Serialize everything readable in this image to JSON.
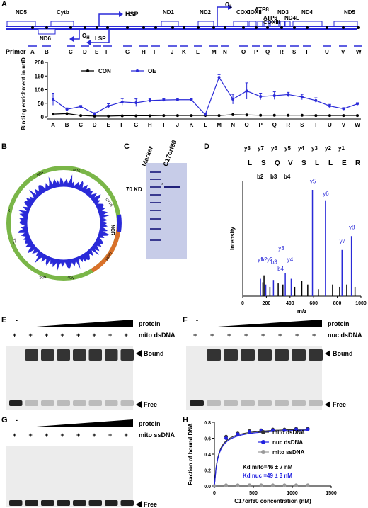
{
  "panels": {
    "a": "A",
    "b": "B",
    "c": "C",
    "d": "D",
    "e": "E",
    "f": "F",
    "g": "G",
    "h": "H"
  },
  "genome_map": {
    "genes_top": [
      "ND5",
      "Cytb",
      "ND1",
      "ND2",
      "COXI",
      "COXII",
      "ATP8",
      "ATP6",
      "COXIII",
      "ND3",
      "ND4L",
      "ND4",
      "ND5"
    ],
    "genes_bottom": [
      "ND6"
    ],
    "promoters": [
      "HSP",
      "LSP"
    ],
    "origins": [
      "OL",
      "OH"
    ],
    "primer_label": "Primer",
    "primers": [
      "A",
      "B",
      "C",
      "D",
      "E",
      "F",
      "G",
      "H",
      "I",
      "J",
      "K",
      "L",
      "M",
      "N",
      "O",
      "P",
      "Q",
      "R",
      "S",
      "T",
      "U",
      "V",
      "W"
    ]
  },
  "chart_data": [
    {
      "type": "line",
      "ylabel": "Binding enrichment in mtDNA",
      "ylim": [
        0,
        200
      ],
      "yticks": [
        0,
        50,
        100,
        150,
        200
      ],
      "categories": [
        "A",
        "B",
        "C",
        "D",
        "E",
        "F",
        "G",
        "H",
        "I",
        "J",
        "K",
        "L",
        "M",
        "N",
        "O",
        "P",
        "Q",
        "R",
        "S",
        "T",
        "U",
        "V",
        "W"
      ],
      "legend_position": "top",
      "series": [
        {
          "name": "CON",
          "color": "#000000",
          "values": [
            10,
            12,
            5,
            3,
            3,
            4,
            4,
            4,
            5,
            5,
            5,
            5,
            5,
            8,
            7,
            6,
            6,
            6,
            6,
            5,
            5,
            5,
            5
          ]
        },
        {
          "name": "OE",
          "color": "#2a2ad8",
          "values": [
            65,
            28,
            38,
            12,
            40,
            55,
            52,
            60,
            62,
            63,
            63,
            8,
            145,
            65,
            95,
            75,
            78,
            82,
            73,
            60,
            40,
            30,
            48
          ]
        }
      ],
      "errors": [
        22,
        5,
        4,
        3,
        8,
        12,
        14,
        6,
        4,
        5,
        4,
        4,
        10,
        18,
        30,
        12,
        14,
        8,
        10,
        10,
        6,
        4,
        4
      ]
    },
    {
      "type": "scatter",
      "xlabel": "C17orf80 concentration (nM)",
      "ylabel": "Fraction of bound DNA",
      "xlim": [
        0,
        1500
      ],
      "ylim": [
        0,
        0.8
      ],
      "xticks": [
        0,
        500,
        1000,
        1500
      ],
      "yticks": [
        0.0,
        0.2,
        0.4,
        0.6,
        0.8
      ],
      "legend_position": "right",
      "series": [
        {
          "name": "mito dsDNA",
          "color": "#333333",
          "x": [
            0,
            150,
            300,
            450,
            600,
            750,
            900,
            1050,
            1200
          ],
          "y": [
            0.0,
            0.62,
            0.66,
            0.69,
            0.7,
            0.71,
            0.71,
            0.72,
            0.72
          ]
        },
        {
          "name": "nuc dsDNA",
          "color": "#2020e0",
          "x": [
            0,
            150,
            300,
            450,
            600,
            750,
            900,
            1050,
            1200
          ],
          "y": [
            0.0,
            0.6,
            0.65,
            0.68,
            0.69,
            0.7,
            0.7,
            0.71,
            0.71
          ]
        },
        {
          "name": "mito ssDNA",
          "color": "#999999",
          "x": [
            0,
            150,
            300,
            450,
            600,
            750,
            900,
            1050,
            1200
          ],
          "y": [
            0.0,
            0.01,
            0.01,
            0.01,
            0.01,
            0.01,
            0.01,
            0.01,
            0.01
          ]
        }
      ],
      "annotations": [
        "Kd mito=46 ± 7 nM",
        "Kd nuc =49 ± 3 nM"
      ]
    }
  ],
  "circos": {
    "labels_outer": [
      "CYTB",
      "ND5",
      "E",
      "T P",
      "NCR",
      "F",
      "RNR1",
      "V",
      "ND4L",
      "ND3",
      "ND4",
      "COXIII",
      "ATP8ATP6",
      "COII",
      "K",
      "D",
      "S",
      "COI",
      "R",
      "A W C Y",
      "ND2",
      "M",
      "ND1",
      "I Q",
      "L1",
      "RNR2",
      "ND6",
      "S2",
      "H",
      "L2"
    ]
  },
  "gel_c": {
    "marker": "Marker",
    "protein": "C17orf80",
    "size": "70 KD"
  },
  "ms": {
    "peptide": [
      "L",
      "S",
      "Q",
      "V",
      "S",
      "L",
      "L",
      "E",
      "R"
    ],
    "y_ions": [
      "y8",
      "y7",
      "y6",
      "y5",
      "y4",
      "y3",
      "y2",
      "y1"
    ],
    "b_ions": [
      "b2",
      "b3",
      "b4"
    ],
    "ylabel": "Intensity",
    "xlabel": "m/z",
    "xticks": [
      "0",
      "200",
      "400",
      "600",
      "800",
      "1000"
    ],
    "peak_labels": [
      "y1",
      "b2",
      "y2",
      "b3",
      "y3",
      "b4",
      "y4",
      "y5",
      "y6",
      "y7",
      "y8"
    ]
  },
  "emsa_e": {
    "minus": "-",
    "plus": "+",
    "protein": "protein",
    "dna": "mito dsDNA",
    "bound": "Bound",
    "free": "Free"
  },
  "emsa_f": {
    "minus": "-",
    "plus": "+",
    "protein": "protein",
    "dna": "nuc dsDNA",
    "bound": "Bound",
    "free": "Free"
  },
  "emsa_g": {
    "minus": "-",
    "plus": "+",
    "protein": "protein",
    "dna": "mito ssDNA",
    "free": "Free"
  }
}
